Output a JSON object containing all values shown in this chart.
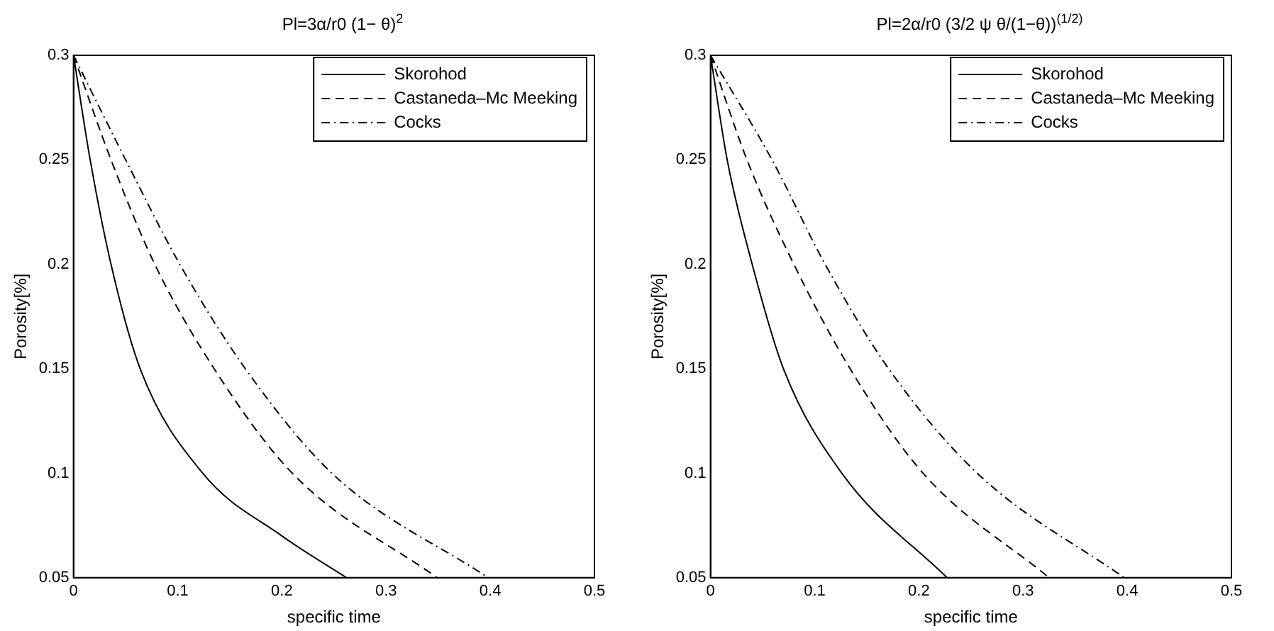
{
  "chart_data": [
    {
      "type": "line",
      "title": "Pl=3α/r0 (1− θ)$^{2}$",
      "xlabel": "specific time",
      "ylabel": "Porosity[%]",
      "xlim": [
        0,
        0.5
      ],
      "ylim": [
        0.05,
        0.3
      ],
      "xticks": [
        0,
        0.1,
        0.2,
        0.3,
        0.4,
        0.5
      ],
      "yticks": [
        0.05,
        0.1,
        0.15,
        0.2,
        0.25,
        0.3
      ],
      "legend": "top right",
      "grid": false,
      "marker": "none",
      "series": [
        {
          "name": "Skorohod",
          "color": "#000000",
          "line_style": "solid",
          "x": [
            0,
            0.016,
            0.036,
            0.064,
            0.124,
            0.2,
            0.262
          ],
          "values": [
            0.3,
            0.25,
            0.2,
            0.15,
            0.1,
            0.07,
            0.05
          ]
        },
        {
          "name": "Castaneda–Mc Meeking",
          "color": "#000000",
          "line_style": "dashed",
          "x": [
            0,
            0.036,
            0.078,
            0.135,
            0.21,
            0.349
          ],
          "values": [
            0.3,
            0.25,
            0.2,
            0.15,
            0.1,
            0.05
          ]
        },
        {
          "name": "Cocks",
          "color": "#000000",
          "line_style": "dashdot",
          "x": [
            0,
            0.05,
            0.102,
            0.165,
            0.248,
            0.398
          ],
          "values": [
            0.3,
            0.25,
            0.2,
            0.15,
            0.1,
            0.05
          ]
        }
      ]
    },
    {
      "type": "line",
      "title": "Pl=2α/r0 (3/2 ψ θ/(1−θ))$^{(1/2)}$",
      "xlabel": "specific time",
      "ylabel": "Porosity[%]",
      "xlim": [
        0,
        0.5
      ],
      "ylim": [
        0.05,
        0.3
      ],
      "xticks": [
        0,
        0.1,
        0.2,
        0.3,
        0.4,
        0.5
      ],
      "yticks": [
        0.05,
        0.1,
        0.15,
        0.2,
        0.25,
        0.3
      ],
      "legend": "top right",
      "grid": false,
      "marker": "none",
      "series": [
        {
          "name": "Skorohod",
          "color": "#000000",
          "line_style": "solid",
          "x": [
            0,
            0.016,
            0.04,
            0.07,
            0.126,
            0.227
          ],
          "values": [
            0.3,
            0.25,
            0.2,
            0.15,
            0.1,
            0.05
          ]
        },
        {
          "name": "Castaneda–Mc Meeking",
          "color": "#000000",
          "line_style": "dashed",
          "x": [
            0,
            0.035,
            0.08,
            0.134,
            0.204,
            0.325
          ],
          "values": [
            0.3,
            0.25,
            0.2,
            0.15,
            0.1,
            0.05
          ]
        },
        {
          "name": "Cocks",
          "color": "#000000",
          "line_style": "dashdot",
          "x": [
            0,
            0.059,
            0.11,
            0.171,
            0.256,
            0.397
          ],
          "values": [
            0.3,
            0.25,
            0.2,
            0.15,
            0.1,
            0.05
          ]
        }
      ]
    }
  ]
}
